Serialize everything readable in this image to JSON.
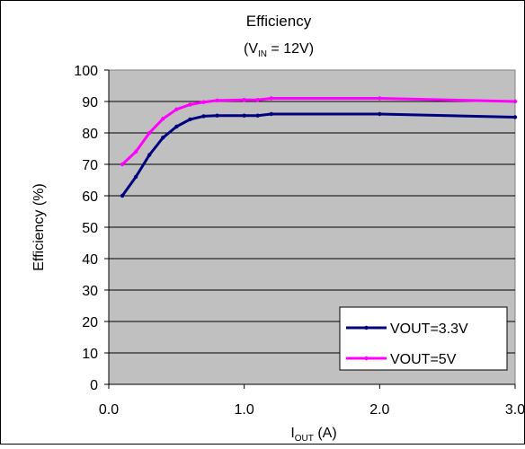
{
  "chart_data": {
    "type": "line",
    "title": "Efficiency",
    "subtitle": {
      "prefix": "(V",
      "subscript": "IN",
      "suffix": " = 12V)"
    },
    "xlabel": {
      "main": "I",
      "subscript": "OUT",
      "suffix": " (A)"
    },
    "ylabel": "Efficiency (%)",
    "xlim": [
      0,
      3.0
    ],
    "ylim": [
      0,
      100
    ],
    "x_ticks": [
      {
        "value": 0,
        "label": "0.0"
      },
      {
        "value": 1,
        "label": "1.0"
      },
      {
        "value": 2,
        "label": "2.0"
      },
      {
        "value": 3,
        "label": "3.0"
      }
    ],
    "y_ticks": [
      {
        "value": 0,
        "label": "0"
      },
      {
        "value": 10,
        "label": "10"
      },
      {
        "value": 20,
        "label": "20"
      },
      {
        "value": 30,
        "label": "30"
      },
      {
        "value": 40,
        "label": "40"
      },
      {
        "value": 50,
        "label": "50"
      },
      {
        "value": 60,
        "label": "60"
      },
      {
        "value": 70,
        "label": "70"
      },
      {
        "value": 80,
        "label": "80"
      },
      {
        "value": 90,
        "label": "90"
      },
      {
        "value": 100,
        "label": "100"
      }
    ],
    "grid": true,
    "plot_background": "#c0c0c0",
    "legend_position": "bottom-right",
    "series": [
      {
        "name": "VOUT=3.3V",
        "color": "#000080",
        "x": [
          0.1,
          0.2,
          0.3,
          0.4,
          0.5,
          0.6,
          0.7,
          0.8,
          1.0,
          1.1,
          1.2,
          2.0,
          3.0
        ],
        "y": [
          60,
          66,
          73,
          78.5,
          82,
          84.3,
          85.3,
          85.5,
          85.5,
          85.5,
          86,
          86,
          85
        ]
      },
      {
        "name": "VOUT=5V",
        "color": "#ff00ff",
        "x": [
          0.1,
          0.2,
          0.3,
          0.4,
          0.5,
          0.6,
          0.7,
          0.8,
          1.0,
          1.1,
          1.2,
          2.0,
          3.0
        ],
        "y": [
          70,
          74,
          80,
          84.5,
          87.5,
          89,
          89.8,
          90.3,
          90.5,
          90.5,
          91,
          91,
          90
        ]
      }
    ]
  }
}
